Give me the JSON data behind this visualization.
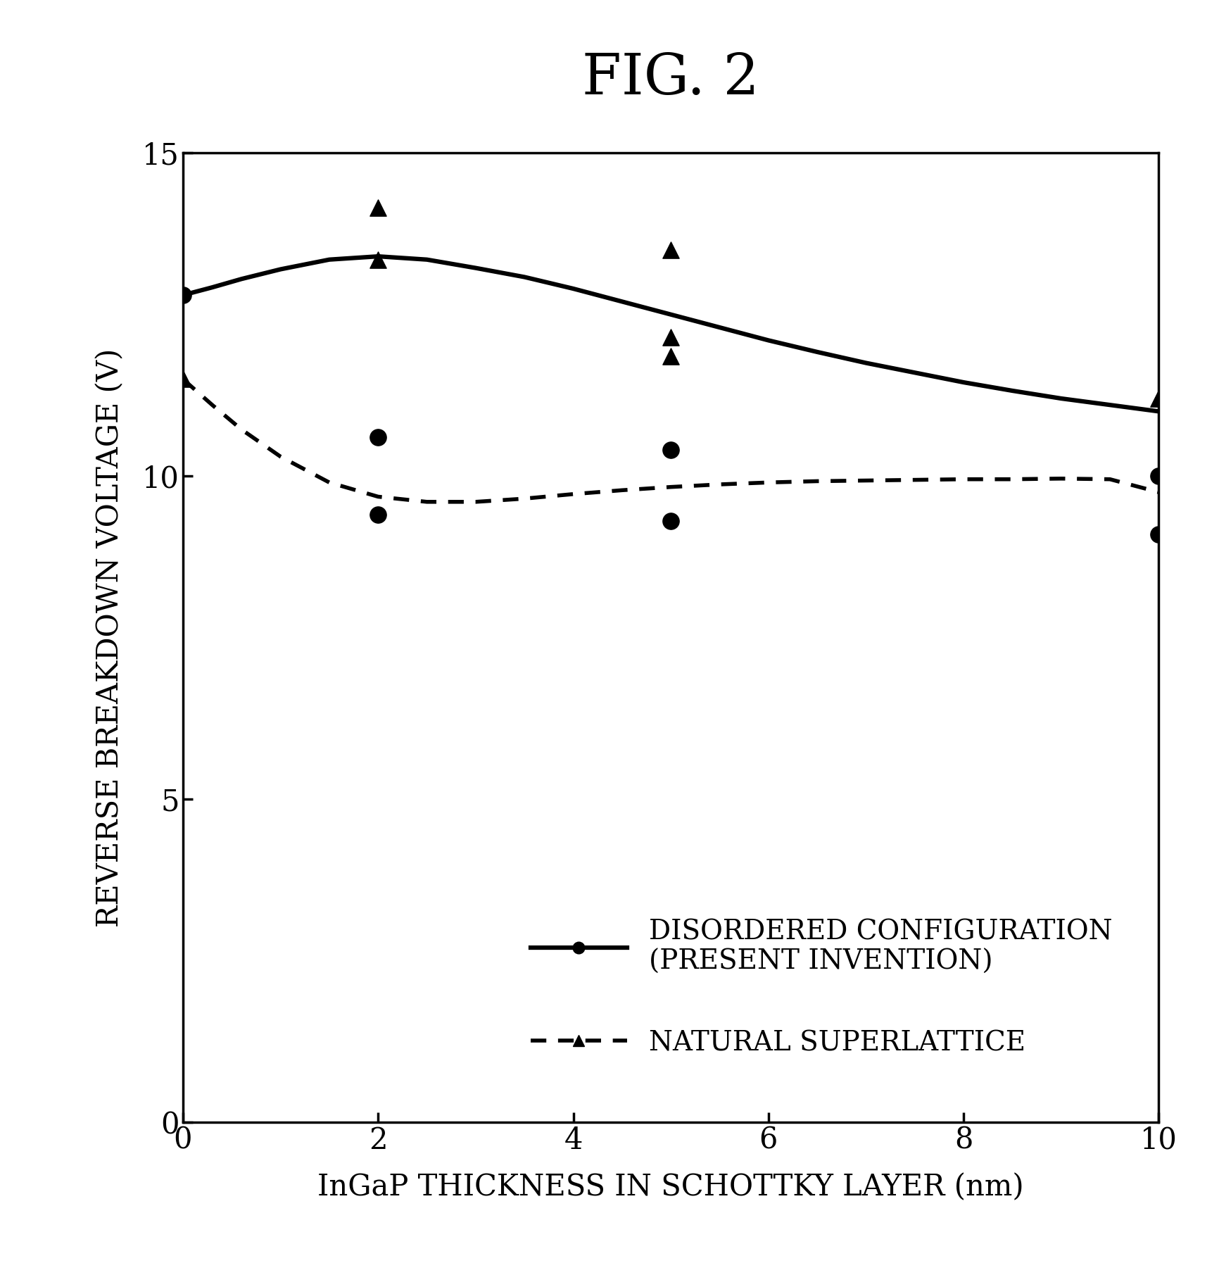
{
  "title": "FIG. 2",
  "xlabel": "InGaP THICKNESS IN SCHOTTKY LAYER (nm)",
  "ylabel": "REVERSE BREAKDOWN VOLTAGE (V)",
  "xlim": [
    0,
    10
  ],
  "ylim": [
    0,
    15
  ],
  "xticks": [
    0,
    2,
    4,
    6,
    8,
    10
  ],
  "yticks": [
    0,
    5,
    10,
    15
  ],
  "solid_line_x": [
    0,
    0.3,
    0.6,
    1.0,
    1.5,
    2.0,
    2.5,
    3.0,
    3.5,
    4.0,
    4.5,
    5.0,
    5.5,
    6.0,
    6.5,
    7.0,
    7.5,
    8.0,
    8.5,
    9.0,
    9.5,
    10.0
  ],
  "solid_line_y": [
    12.8,
    12.92,
    13.05,
    13.2,
    13.35,
    13.4,
    13.35,
    13.22,
    13.08,
    12.9,
    12.7,
    12.5,
    12.3,
    12.1,
    11.92,
    11.75,
    11.6,
    11.45,
    11.32,
    11.2,
    11.1,
    11.0
  ],
  "dashed_line_x": [
    0,
    0.3,
    0.6,
    1.0,
    1.5,
    2.0,
    2.5,
    3.0,
    3.5,
    4.0,
    4.5,
    5.0,
    5.5,
    6.0,
    6.5,
    7.0,
    7.5,
    8.0,
    8.5,
    9.0,
    9.5,
    10.0
  ],
  "dashed_line_y": [
    11.5,
    11.1,
    10.72,
    10.3,
    9.9,
    9.68,
    9.6,
    9.6,
    9.65,
    9.72,
    9.78,
    9.83,
    9.87,
    9.9,
    9.92,
    9.93,
    9.94,
    9.95,
    9.95,
    9.96,
    9.95,
    9.75
  ],
  "solid_scatter_x": [
    0,
    2,
    2,
    5,
    5,
    10,
    10
  ],
  "solid_scatter_y": [
    12.8,
    10.6,
    9.4,
    10.4,
    9.3,
    10.0,
    9.1
  ],
  "dashed_scatter_x": [
    0,
    2,
    2,
    5,
    5,
    5,
    10
  ],
  "dashed_scatter_y": [
    11.5,
    14.15,
    13.35,
    13.5,
    12.15,
    11.85,
    11.2
  ],
  "legend_label_solid": "DISORDERED CONFIGURATION\n(PRESENT INVENTION)",
  "legend_label_dashed": "NATURAL SUPERLATTICE",
  "title_fontsize": 58,
  "label_fontsize": 30,
  "tick_fontsize": 30,
  "legend_fontsize": 28,
  "background_color": "#ffffff",
  "line_color": "#000000"
}
